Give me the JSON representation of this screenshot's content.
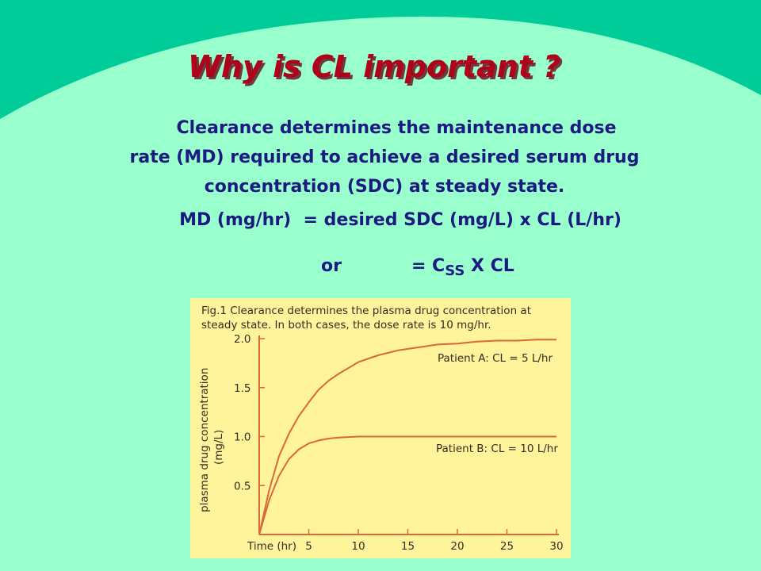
{
  "slide": {
    "title": "Why is CL important ?",
    "paragraph": {
      "line1": "Clearance determines the maintenance dose",
      "line2": "rate (MD) required to achieve a desired serum drug",
      "line3": "concentration (SDC) at steady state."
    },
    "formula": "MD (mg/hr)  = desired SDC (mg/L) x CL (L/hr)",
    "alternative": {
      "or": "or",
      "eq": "= C",
      "subscript": "SS",
      "rest": " X CL"
    },
    "colors": {
      "background": "#99FFCC",
      "banner": "#00CC99",
      "title": "#B0001A",
      "text": "#1A1A80",
      "figure_bg": "#FFF39B",
      "curve": "#D9683A"
    }
  },
  "figure": {
    "caption_line1": "Fig.1 Clearance determines the plasma drug concentration at",
    "caption_line2": "steady state. In both cases, the dose rate is 10 mg/hr."
  },
  "chart_data": {
    "type": "line",
    "xlabel": "Time (hr)",
    "ylabel": "plasma drug concentration",
    "ylabel_unit": "(mg/L)",
    "xlim": [
      0,
      30
    ],
    "ylim": [
      0,
      2.0
    ],
    "x_ticks": [
      5,
      10,
      15,
      20,
      25,
      30
    ],
    "y_ticks": [
      0.5,
      1.0,
      1.5,
      2.0
    ],
    "y_tick_labels": [
      "0.5",
      "1.0",
      "1.5",
      "2.0"
    ],
    "x": [
      0,
      1,
      2,
      3,
      4,
      5,
      6,
      7,
      8,
      9,
      10,
      12,
      14,
      16,
      18,
      20,
      22,
      24,
      26,
      28,
      30
    ],
    "series": [
      {
        "name": "Patient A: CL = 5 L/hr",
        "values": [
          0.0,
          0.45,
          0.8,
          1.03,
          1.21,
          1.35,
          1.48,
          1.57,
          1.64,
          1.7,
          1.76,
          1.83,
          1.88,
          1.91,
          1.94,
          1.95,
          1.97,
          1.98,
          1.98,
          1.99,
          1.99
        ]
      },
      {
        "name": "Patient B: CL = 10 L/hr",
        "values": [
          0.0,
          0.35,
          0.6,
          0.77,
          0.87,
          0.93,
          0.96,
          0.98,
          0.99,
          0.995,
          1.0,
          1.0,
          1.0,
          1.0,
          1.0,
          1.0,
          1.0,
          1.0,
          1.0,
          1.0,
          1.0
        ]
      }
    ]
  }
}
